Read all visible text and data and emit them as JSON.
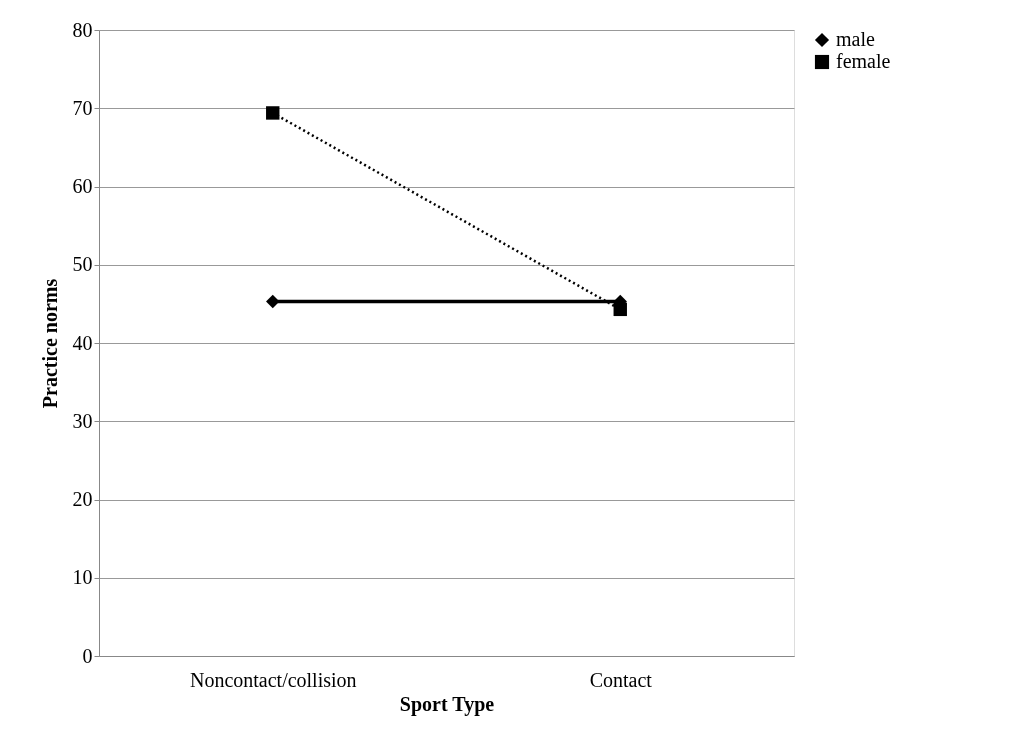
{
  "chart_data": {
    "type": "line",
    "xlabel": "Sport Type",
    "ylabel": "Practice norms",
    "categories": [
      "Noncontact/collision",
      "Contact"
    ],
    "series": [
      {
        "name": "male",
        "color": "#000000",
        "values": [
          45.3,
          45.3
        ],
        "marker": "diamond",
        "line_style": "solid"
      },
      {
        "name": "female",
        "color": "#000000",
        "values": [
          69.4,
          44.3
        ],
        "marker": "square",
        "line_style": "dotted"
      }
    ],
    "ylim": [
      0,
      80
    ],
    "yticks": [
      0,
      10,
      20,
      30,
      40,
      50,
      60,
      70,
      80
    ],
    "grid": "y",
    "legend": "right"
  }
}
